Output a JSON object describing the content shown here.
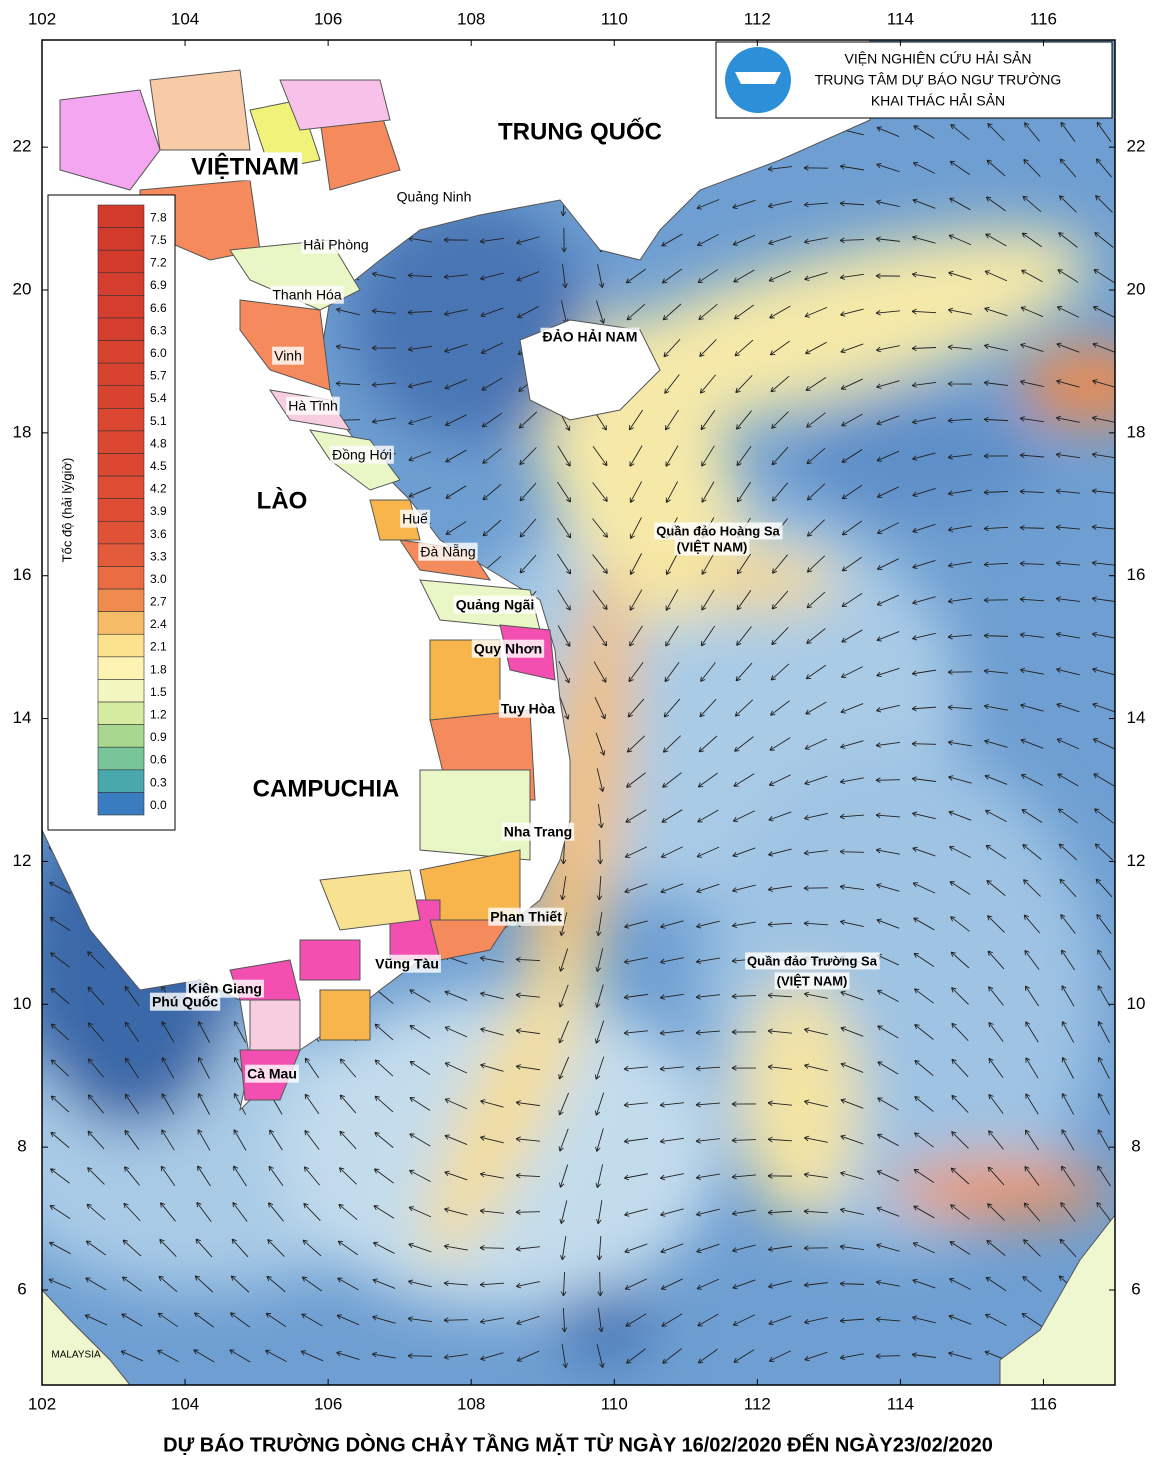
{
  "header": {
    "lines": [
      "VIỆN NGHIÊN CỨU HẢI SẢN",
      "TRUNG TÂM DỰ BÁO NGƯ TRƯỜNG",
      "KHAI THÁC HẢI SẢN"
    ]
  },
  "title": "DỰ BÁO TRƯỜNG DÒNG CHẢY TẦNG MẶT TỪ NGÀY 16/02/2020 ĐẾN NGÀY23/02/2020",
  "map": {
    "lon_range": [
      102,
      117
    ],
    "lat_range": [
      4.67,
      23.5
    ],
    "lon_ticks": [
      102,
      104,
      106,
      108,
      110,
      112,
      114,
      116
    ],
    "lat_ticks": [
      6,
      8,
      10,
      12,
      14,
      16,
      18,
      20,
      22
    ]
  },
  "legend": {
    "title": "Tốc độ (hải lý/giờ)",
    "items": [
      {
        "label": "7.8",
        "color": "#d23a2c"
      },
      {
        "label": "7.5",
        "color": "#d23a2c"
      },
      {
        "label": "7.2",
        "color": "#d23a2c"
      },
      {
        "label": "6.9",
        "color": "#d53e2e"
      },
      {
        "label": "6.6",
        "color": "#d53e2e"
      },
      {
        "label": "6.3",
        "color": "#d53e2e"
      },
      {
        "label": "6.0",
        "color": "#d8432f"
      },
      {
        "label": "5.7",
        "color": "#d8432f"
      },
      {
        "label": "5.4",
        "color": "#d8432f"
      },
      {
        "label": "5.1",
        "color": "#db4731"
      },
      {
        "label": "4.8",
        "color": "#db4731"
      },
      {
        "label": "4.5",
        "color": "#db4731"
      },
      {
        "label": "4.2",
        "color": "#de4c33"
      },
      {
        "label": "3.9",
        "color": "#de4c33"
      },
      {
        "label": "3.6",
        "color": "#e05236"
      },
      {
        "label": "3.3",
        "color": "#e35b3a"
      },
      {
        "label": "3.0",
        "color": "#ea6c42"
      },
      {
        "label": "2.7",
        "color": "#f08b50"
      },
      {
        "label": "2.4",
        "color": "#f6bb66"
      },
      {
        "label": "2.1",
        "color": "#fce28f"
      },
      {
        "label": "1.8",
        "color": "#fdf3b3"
      },
      {
        "label": "1.5",
        "color": "#f3f7bf"
      },
      {
        "label": "1.2",
        "color": "#d5eca0"
      },
      {
        "label": "0.9",
        "color": "#a8d890"
      },
      {
        "label": "0.6",
        "color": "#79c59a"
      },
      {
        "label": "0.3",
        "color": "#48a8ab"
      },
      {
        "label": "0.0",
        "color": "#3a7cc0"
      }
    ]
  },
  "places": [
    "VIỆTNAM",
    "TRUNG QUỐC",
    "LÀO",
    "CAMPUCHIA",
    "ĐẢO HẢI NAM",
    "Quảng Ninh",
    "Hải Phòng",
    "Thanh Hóa",
    "Vinh",
    "Hà Tĩnh",
    "Đồng Hới",
    "Huế",
    "Đà Nẵng",
    "Quảng Ngãi",
    "Quy Nhơn",
    "Tuy Hòa",
    "Nha Trang",
    "Phan Thiết",
    "Vũng Tàu",
    "Kiên Giang",
    "Phú Quốc",
    "Cà Mau",
    "Quần đảo Hoàng Sa",
    "(VIỆT NAM)",
    "Quần đảo Trường Sa",
    "(VIỆT NAM)",
    "MALAYSIA"
  ]
}
